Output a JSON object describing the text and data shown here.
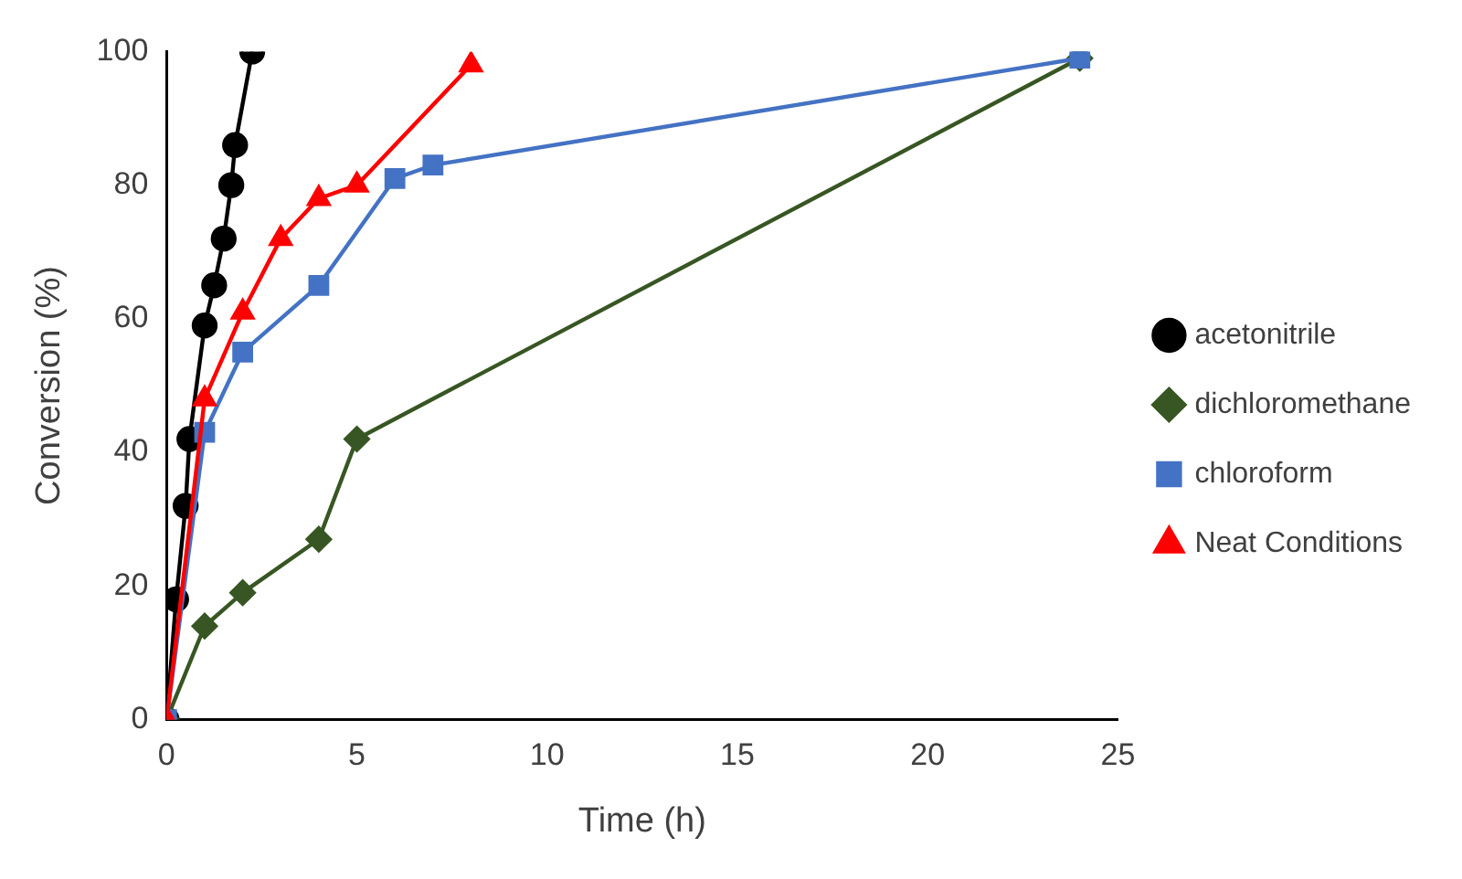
{
  "chart_data": {
    "type": "line",
    "xlabel": "Time (h)",
    "ylabel": "Conversion (%)",
    "xlim": [
      0,
      25
    ],
    "xticks": [
      0,
      5,
      10,
      15,
      20,
      25
    ],
    "ylim": [
      0,
      100
    ],
    "yticks": [
      0,
      20,
      40,
      60,
      80,
      100
    ],
    "grid": false,
    "legend": "right",
    "line_style": "solid",
    "series": [
      {
        "name": "acetonitrile",
        "color": "#000000",
        "marker": "circle",
        "x": [
          0,
          0.25,
          0.5,
          0.6,
          1,
          1.25,
          1.5,
          1.7,
          1.8,
          2.25
        ],
        "values": [
          0,
          18,
          32,
          42,
          59,
          65,
          72,
          80,
          86,
          100
        ]
      },
      {
        "name": "dichloromethane",
        "color": "#375623",
        "marker": "diamond",
        "x": [
          0,
          1,
          2,
          4,
          5,
          24
        ],
        "values": [
          0,
          14,
          19,
          27,
          42,
          99
        ]
      },
      {
        "name": "chloroform",
        "color": "#4472c4",
        "marker": "square",
        "x": [
          0,
          1,
          2,
          4,
          6,
          7,
          24
        ],
        "values": [
          0,
          43,
          55,
          65,
          81,
          83,
          99
        ]
      },
      {
        "name": "Neat Conditions",
        "color": "#ff0000",
        "marker": "triangle",
        "x": [
          0,
          1,
          2,
          3,
          4,
          5,
          8
        ],
        "values": [
          0,
          48,
          61,
          72,
          78,
          80,
          98
        ]
      }
    ]
  }
}
